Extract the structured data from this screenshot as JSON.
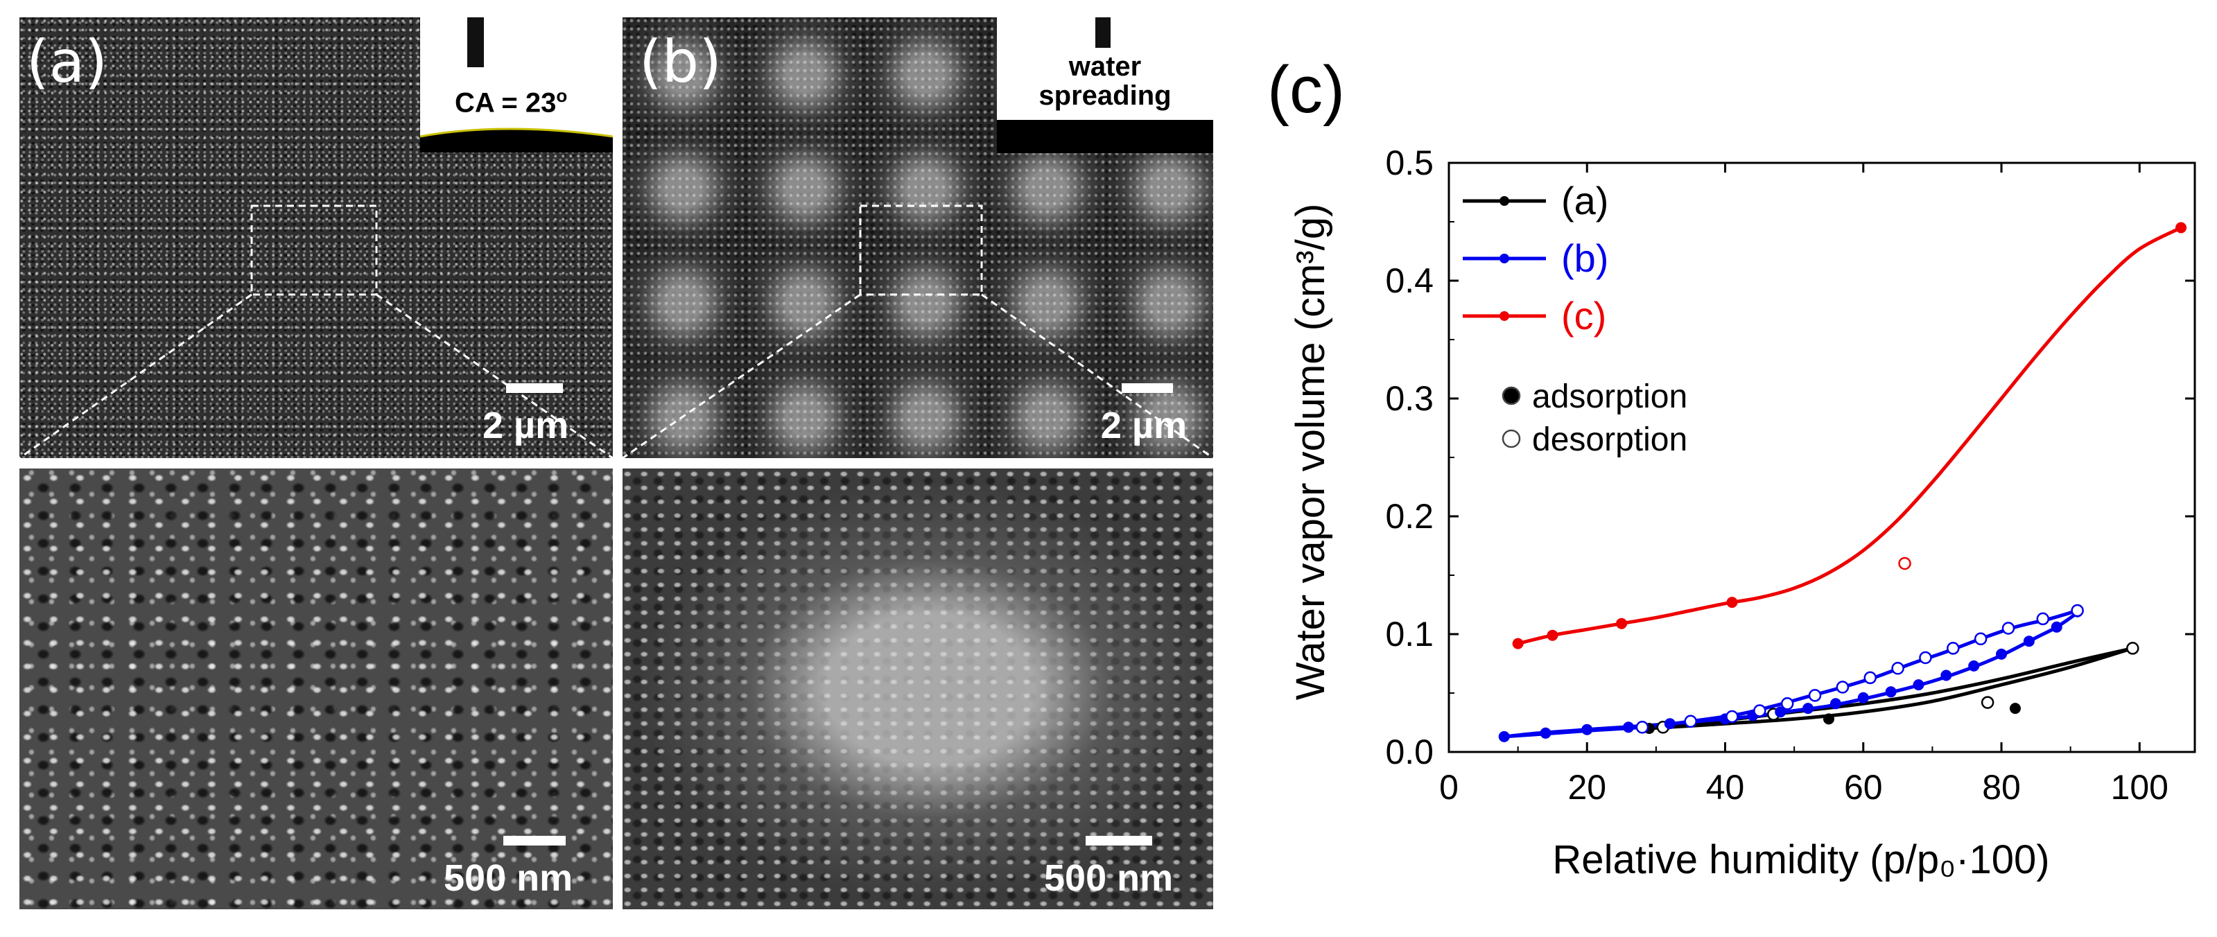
{
  "figure": {
    "panel_a": {
      "letter": "(a)",
      "top_scale": "2 µm",
      "bottom_scale": "500 nm",
      "inset": {
        "contact_angle_label": "CA = 23",
        "contact_angle_unit": "o"
      }
    },
    "panel_b": {
      "letter": "(b)",
      "top_scale": "2 µm",
      "bottom_scale": "500 nm",
      "inset": {
        "line1": "water",
        "line2": "spreading"
      }
    }
  },
  "colors": {
    "a": "#000000",
    "b": "#0000ee",
    "c": "#ee0000"
  },
  "chart_data": {
    "type": "line",
    "panel_label": "(c)",
    "xlabel": "Relative humidity (p/p₀·100)",
    "ylabel": "Water vapor volume (cm³/g)",
    "xlim": [
      0,
      108
    ],
    "ylim": [
      0,
      0.5
    ],
    "xticks": [
      0,
      20,
      40,
      60,
      80,
      100
    ],
    "yticks": [
      0.0,
      0.1,
      0.2,
      0.3,
      0.4,
      0.5
    ],
    "xtick_labels": [
      "0",
      "20",
      "40",
      "60",
      "80",
      "100"
    ],
    "ytick_labels": [
      "0.0",
      "0.1",
      "0.2",
      "0.3",
      "0.4",
      "0.5"
    ],
    "legend": {
      "series_entries": [
        "(a)",
        "(b)",
        "(c)"
      ],
      "marker_entries": [
        "adsorption",
        "desorption"
      ]
    },
    "series": [
      {
        "name": "(a)",
        "color": "#000000",
        "adsorption": [
          [
            29,
            0.02
          ],
          [
            40,
            0.024
          ],
          [
            50,
            0.028
          ],
          [
            60,
            0.034
          ],
          [
            70,
            0.043
          ],
          [
            80,
            0.057
          ],
          [
            90,
            0.072
          ],
          [
            99,
            0.088
          ]
        ],
        "desorption": [
          [
            99,
            0.088
          ],
          [
            90,
            0.076
          ],
          [
            80,
            0.062
          ],
          [
            70,
            0.05
          ],
          [
            60,
            0.041
          ],
          [
            50,
            0.034
          ],
          [
            40,
            0.027
          ],
          [
            29,
            0.021
          ]
        ],
        "adsorption_points": [
          [
            29,
            0.02
          ],
          [
            55,
            0.028
          ],
          [
            82,
            0.037
          ]
        ],
        "desorption_points": [
          [
            31,
            0.021
          ],
          [
            47,
            0.032
          ],
          [
            78,
            0.042
          ],
          [
            99,
            0.088
          ]
        ]
      },
      {
        "name": "(b)",
        "color": "#0000ee",
        "adsorption": [
          [
            8,
            0.013
          ],
          [
            13,
            0.016
          ],
          [
            20,
            0.019
          ],
          [
            30,
            0.023
          ],
          [
            40,
            0.028
          ],
          [
            45,
            0.031
          ],
          [
            50,
            0.035
          ],
          [
            55,
            0.039
          ],
          [
            60,
            0.045
          ],
          [
            65,
            0.052
          ],
          [
            70,
            0.06
          ],
          [
            75,
            0.07
          ],
          [
            80,
            0.082
          ],
          [
            85,
            0.097
          ],
          [
            88,
            0.106
          ],
          [
            91,
            0.118
          ]
        ],
        "desorption": [
          [
            91,
            0.12
          ],
          [
            87,
            0.113
          ],
          [
            82,
            0.106
          ],
          [
            77,
            0.096
          ],
          [
            72,
            0.085
          ],
          [
            67,
            0.075
          ],
          [
            62,
            0.064
          ],
          [
            57,
            0.055
          ],
          [
            52,
            0.047
          ],
          [
            47,
            0.039
          ],
          [
            42,
            0.032
          ],
          [
            35,
            0.026
          ],
          [
            28,
            0.021
          ],
          [
            20,
            0.018
          ],
          [
            13,
            0.015
          ],
          [
            8,
            0.013
          ]
        ],
        "adsorption_points": [
          [
            8,
            0.013
          ],
          [
            14,
            0.016
          ],
          [
            20,
            0.019
          ],
          [
            26,
            0.021
          ],
          [
            32,
            0.024
          ],
          [
            40,
            0.028
          ],
          [
            44,
            0.031
          ],
          [
            48,
            0.034
          ],
          [
            52,
            0.037
          ],
          [
            56,
            0.041
          ],
          [
            60,
            0.046
          ],
          [
            64,
            0.051
          ],
          [
            68,
            0.057
          ],
          [
            72,
            0.065
          ],
          [
            76,
            0.073
          ],
          [
            80,
            0.083
          ],
          [
            84,
            0.094
          ],
          [
            88,
            0.106
          ],
          [
            91,
            0.119
          ]
        ],
        "desorption_points": [
          [
            91,
            0.12
          ],
          [
            86,
            0.113
          ],
          [
            81,
            0.105
          ],
          [
            77,
            0.096
          ],
          [
            73,
            0.088
          ],
          [
            69,
            0.08
          ],
          [
            65,
            0.071
          ],
          [
            61,
            0.063
          ],
          [
            57,
            0.055
          ],
          [
            53,
            0.048
          ],
          [
            49,
            0.041
          ],
          [
            45,
            0.035
          ],
          [
            41,
            0.03
          ],
          [
            35,
            0.026
          ],
          [
            28,
            0.021
          ]
        ]
      },
      {
        "name": "(c)",
        "color": "#ee0000",
        "adsorption": [
          [
            10,
            0.092
          ],
          [
            15,
            0.099
          ],
          [
            20,
            0.104
          ],
          [
            25,
            0.109
          ],
          [
            30,
            0.114
          ],
          [
            35,
            0.12
          ],
          [
            40,
            0.126
          ],
          [
            45,
            0.131
          ],
          [
            50,
            0.139
          ],
          [
            55,
            0.152
          ],
          [
            60,
            0.171
          ],
          [
            65,
            0.197
          ],
          [
            70,
            0.229
          ],
          [
            75,
            0.264
          ],
          [
            80,
            0.3
          ],
          [
            85,
            0.336
          ],
          [
            90,
            0.37
          ],
          [
            95,
            0.401
          ],
          [
            100,
            0.427
          ],
          [
            106,
            0.445
          ]
        ],
        "adsorption_points": [
          [
            10,
            0.092
          ],
          [
            15,
            0.099
          ],
          [
            25,
            0.109
          ],
          [
            41,
            0.127
          ],
          [
            106,
            0.445
          ]
        ],
        "desorption_points": [
          [
            66,
            0.16
          ]
        ]
      }
    ]
  }
}
